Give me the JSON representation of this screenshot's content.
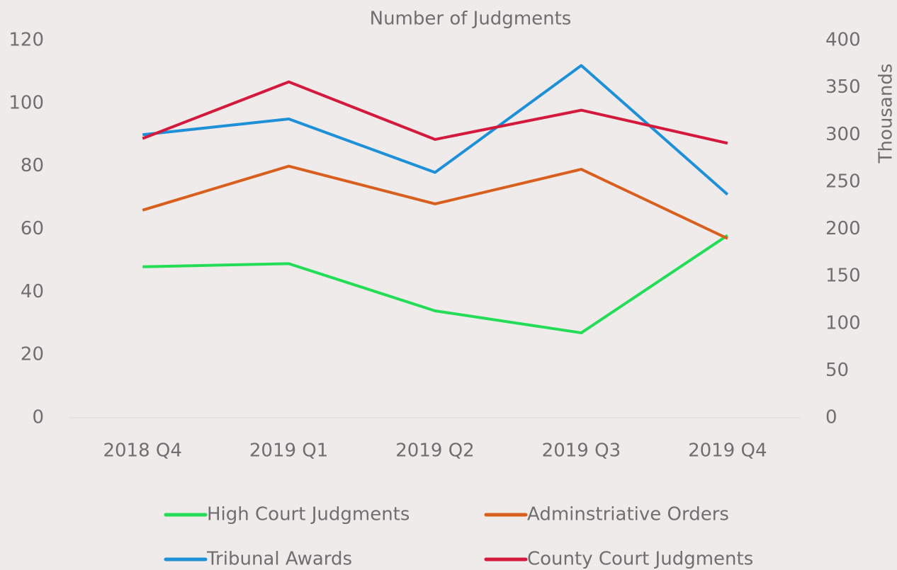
{
  "chart_data": {
    "type": "line",
    "title": "Number of Judgments",
    "y2_label": "Thousands",
    "categories": [
      "2018 Q4",
      "2019 Q1",
      "2019 Q2",
      "2019 Q3",
      "2019 Q4"
    ],
    "ylim": [
      0,
      120
    ],
    "yticks": [
      0,
      20,
      40,
      60,
      80,
      100,
      120
    ],
    "y2lim": [
      0,
      400
    ],
    "y2ticks": [
      0,
      50,
      100,
      150,
      200,
      250,
      300,
      350,
      400
    ],
    "series": [
      {
        "name": "High Court Judgments",
        "color": "#22dd55",
        "values": [
          48,
          49,
          34,
          27,
          58
        ]
      },
      {
        "name": "Adminstriative Orders",
        "color": "#d95f1e",
        "values": [
          66,
          80,
          68,
          79,
          57
        ]
      },
      {
        "name": "Tribunal Awards",
        "color": "#1e90d8",
        "values": [
          90,
          95,
          78,
          112,
          71
        ]
      },
      {
        "name": "County Court Judgments",
        "color": "#d41a3c",
        "values": [
          296,
          356,
          295,
          326,
          291
        ],
        "axis": "y2"
      }
    ]
  }
}
